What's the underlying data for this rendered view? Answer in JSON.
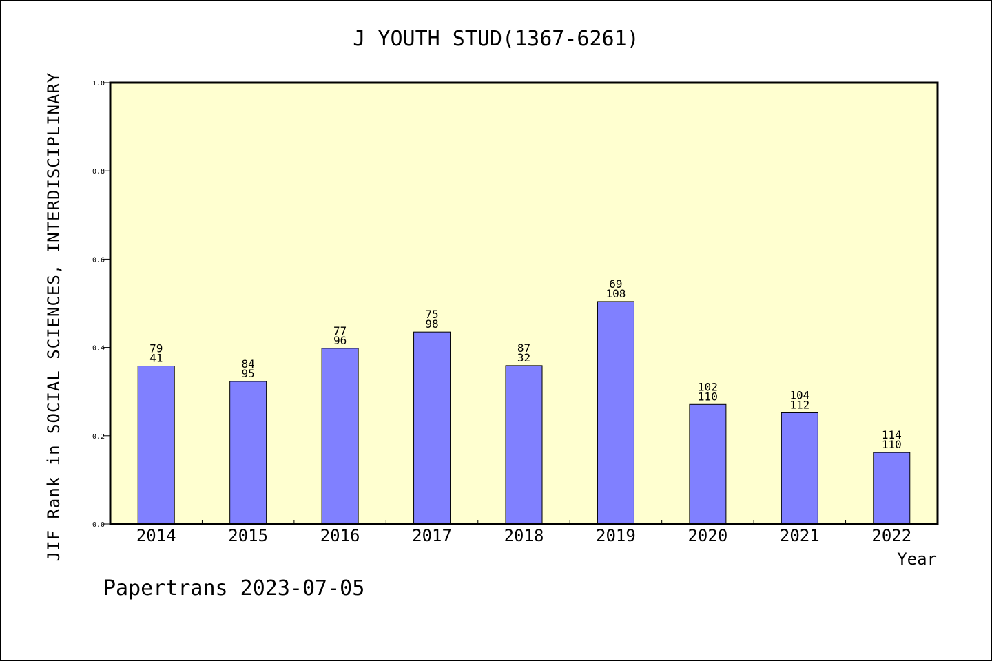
{
  "chart_data": {
    "type": "bar",
    "title": "J YOUTH STUD(1367-6261)",
    "xlabel": "Year",
    "ylabel": "JIF Rank in SOCIAL SCIENCES, INTERDISCIPLINARY",
    "categories": [
      "2014",
      "2015",
      "2016",
      "2017",
      "2018",
      "2019",
      "2020",
      "2021",
      "2022"
    ],
    "values": [
      0.358,
      0.323,
      0.398,
      0.435,
      0.359,
      0.504,
      0.271,
      0.252,
      0.162
    ],
    "annotations_top": [
      "79",
      "84",
      "77",
      "75",
      "87",
      "69",
      "102",
      "104",
      "114"
    ],
    "annotations_bottom": [
      "41",
      "95",
      "96",
      "98",
      "32",
      "108",
      "110",
      "112",
      "110"
    ],
    "ylim": [
      0,
      1.0
    ],
    "yticks": [
      "0.0",
      "0.2",
      "0.4",
      "0.6",
      "0.8",
      "1.0"
    ],
    "grid": false,
    "colors": {
      "plot_background": "#ffffd0",
      "bar_fill": "#8080ff",
      "bar_stroke": "#000000"
    }
  },
  "footer": {
    "text": "Papertrans 2023-07-05"
  }
}
